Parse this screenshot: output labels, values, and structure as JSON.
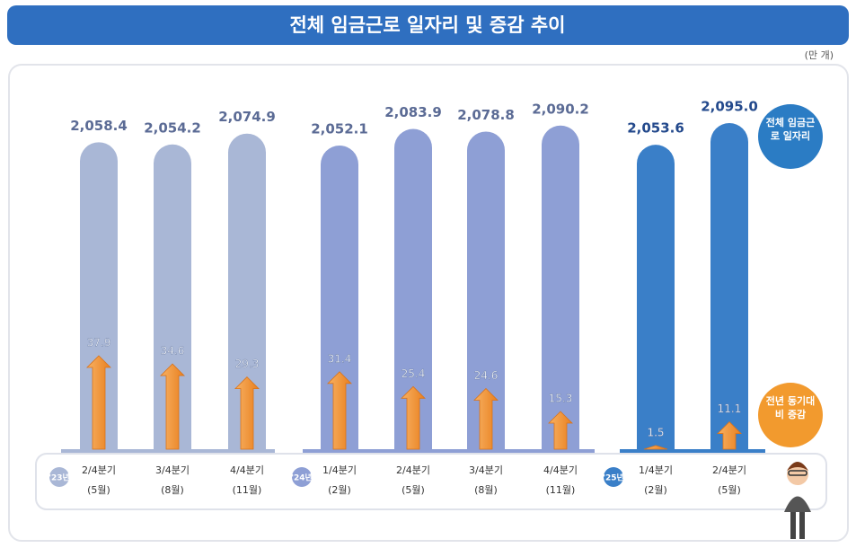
{
  "chart_data": {
    "type": "bar",
    "title": "전체 임금근로 일자리 및 증감 추이",
    "unit": "(만 개)",
    "groups": [
      {
        "label": "'23년",
        "color": "#a9b7d6",
        "categories": [
          "2/4분기",
          "3/4분기",
          "4/4분기"
        ],
        "months": [
          "(5월)",
          "(8월)",
          "(11월)"
        ]
      },
      {
        "label": "'24년",
        "color": "#8e9fd5",
        "categories": [
          "1/4분기",
          "2/4분기",
          "3/4분기",
          "4/4분기"
        ],
        "months": [
          "(2월)",
          "(5월)",
          "(8월)",
          "(11월)"
        ]
      },
      {
        "label": "'25년",
        "color": "#3a7fc8",
        "categories": [
          "1/4분기",
          "2/4분기"
        ],
        "months": [
          "(2월)",
          "(5월)"
        ]
      }
    ],
    "series": [
      {
        "name": "전체 임금근로 일자리",
        "color": "#2b7cc4",
        "values": [
          2058.4,
          2054.2,
          2074.9,
          2052.1,
          2083.9,
          2078.8,
          2090.2,
          2053.6,
          2095.0
        ],
        "value_labels": [
          "2,058.4",
          "2,054.2",
          "2,074.9",
          "2,052.1",
          "2,083.9",
          "2,078.8",
          "2,090.2",
          "2,053.6",
          "2,095.0"
        ]
      },
      {
        "name": "전년 동기대비 증감",
        "color": "#f29a2e",
        "values": [
          37.9,
          34.6,
          29.3,
          31.4,
          25.4,
          24.6,
          15.3,
          1.5,
          11.1
        ]
      }
    ]
  }
}
